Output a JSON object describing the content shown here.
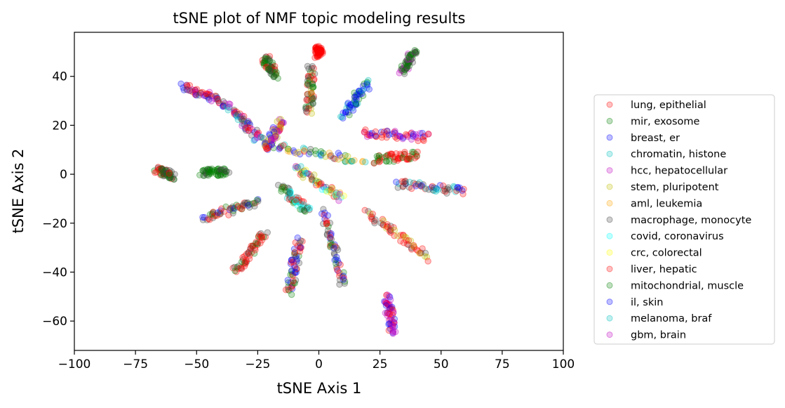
{
  "chart_data": {
    "type": "scatter",
    "title": "tSNE plot of NMF topic modeling results",
    "xlabel": "tSNE Axis 1",
    "ylabel": "tSNE Axis 2",
    "xlim": [
      -100,
      100
    ],
    "ylim": [
      -72,
      58
    ],
    "x_ticks": [
      -100,
      -75,
      -50,
      -25,
      0,
      25,
      50,
      75,
      100
    ],
    "x_tick_labels": [
      "−100",
      "−75",
      "−50",
      "−25",
      "0",
      "25",
      "50",
      "75",
      "100"
    ],
    "y_ticks": [
      -60,
      -40,
      -20,
      0,
      20,
      40
    ],
    "y_tick_labels": [
      "−60",
      "−40",
      "−20",
      "0",
      "20",
      "40"
    ],
    "grid": false,
    "legend_position": "right, outside plot",
    "marker_alpha": 0.25,
    "series": [
      {
        "name": "lung, epithelial",
        "color": "#ff0000"
      },
      {
        "name": "mir, exosome",
        "color": "#008000"
      },
      {
        "name": "breast, er",
        "color": "#0000ff"
      },
      {
        "name": "chromatin, histone",
        "color": "#00bfbf"
      },
      {
        "name": "hcc, hepatocellular",
        "color": "#bf00bf"
      },
      {
        "name": "stem, pluripotent",
        "color": "#bfbf00"
      },
      {
        "name": "aml, leukemia",
        "color": "#ffa500"
      },
      {
        "name": "macrophage, monocyte",
        "color": "#404040"
      },
      {
        "name": "covid, coronavirus",
        "color": "#00ffff"
      },
      {
        "name": "crc, colorectal",
        "color": "#ffff00"
      },
      {
        "name": "liver, hepatic",
        "color": "#ff0000"
      },
      {
        "name": "mitochondrial, muscle",
        "color": "#008000"
      },
      {
        "name": "il, skin",
        "color": "#0000ff"
      },
      {
        "name": "melanoma, braf",
        "color": "#00bfbf"
      },
      {
        "name": "gbm, brain",
        "color": "#bf00bf"
      }
    ],
    "clusters": [
      {
        "from": [
          -56,
          36
        ],
        "to": [
          -38,
          29
        ],
        "series": [
          0,
          10,
          4,
          2,
          7
        ]
      },
      {
        "from": [
          -37,
          28
        ],
        "to": [
          -24,
          14
        ],
        "series": [
          2,
          4,
          0,
          7,
          3
        ]
      },
      {
        "from": [
          -22,
          48
        ],
        "to": [
          -18,
          40
        ],
        "series": [
          1,
          11,
          7,
          0
        ]
      },
      {
        "from": [
          -66,
          2
        ],
        "to": [
          -60,
          -1
        ],
        "series": [
          0,
          1,
          7
        ]
      },
      {
        "from": [
          -48,
          1
        ],
        "to": [
          -37,
          1
        ],
        "series": [
          1,
          11,
          7
        ]
      },
      {
        "from": [
          -47,
          -18
        ],
        "to": [
          -25,
          -11
        ],
        "series": [
          0,
          2,
          7,
          1
        ]
      },
      {
        "from": [
          -34,
          -40
        ],
        "to": [
          -22,
          -24
        ],
        "series": [
          0,
          10,
          7,
          1
        ]
      },
      {
        "from": [
          -12,
          -48
        ],
        "to": [
          -8,
          -27
        ],
        "series": [
          2,
          7,
          11,
          0
        ]
      },
      {
        "from": [
          0,
          51
        ],
        "to": [
          0,
          49
        ],
        "series": [
          0,
          10
        ]
      },
      {
        "from": [
          -3,
          44
        ],
        "to": [
          -4,
          25
        ],
        "series": [
          1,
          7,
          5,
          0
        ]
      },
      {
        "from": [
          10,
          24
        ],
        "to": [
          20,
          37
        ],
        "series": [
          2,
          12,
          1,
          3
        ]
      },
      {
        "from": [
          34,
          42
        ],
        "to": [
          39,
          50
        ],
        "series": [
          1,
          11,
          7,
          4
        ]
      },
      {
        "from": [
          18,
          17
        ],
        "to": [
          45,
          15
        ],
        "series": [
          0,
          10,
          4,
          2
        ]
      },
      {
        "from": [
          23,
          6
        ],
        "to": [
          40,
          8
        ],
        "series": [
          0,
          10,
          1
        ]
      },
      {
        "from": [
          32,
          -4
        ],
        "to": [
          59,
          -7
        ],
        "series": [
          0,
          2,
          3,
          7
        ]
      },
      {
        "from": [
          20,
          -16
        ],
        "to": [
          44,
          -34
        ],
        "series": [
          0,
          10,
          7,
          5
        ]
      },
      {
        "from": [
          28,
          -50
        ],
        "to": [
          30,
          -65
        ],
        "series": [
          0,
          4,
          14,
          2
        ]
      },
      {
        "from": [
          2,
          -15
        ],
        "to": [
          10,
          -45
        ],
        "series": [
          0,
          7,
          2,
          11
        ]
      },
      {
        "from": [
          -10,
          3
        ],
        "to": [
          10,
          -10
        ],
        "series": [
          7,
          0,
          1,
          2,
          3,
          4,
          5,
          6,
          8,
          9
        ]
      },
      {
        "from": [
          -20,
          12
        ],
        "to": [
          18,
          5
        ],
        "series": [
          0,
          2,
          3,
          5,
          7,
          1,
          6
        ]
      },
      {
        "from": [
          -15,
          -5
        ],
        "to": [
          -5,
          -15
        ],
        "series": [
          3,
          1,
          0,
          7,
          8
        ]
      },
      {
        "from": [
          -15,
          22
        ],
        "to": [
          -22,
          10
        ],
        "series": [
          4,
          2,
          0,
          5
        ]
      }
    ]
  }
}
